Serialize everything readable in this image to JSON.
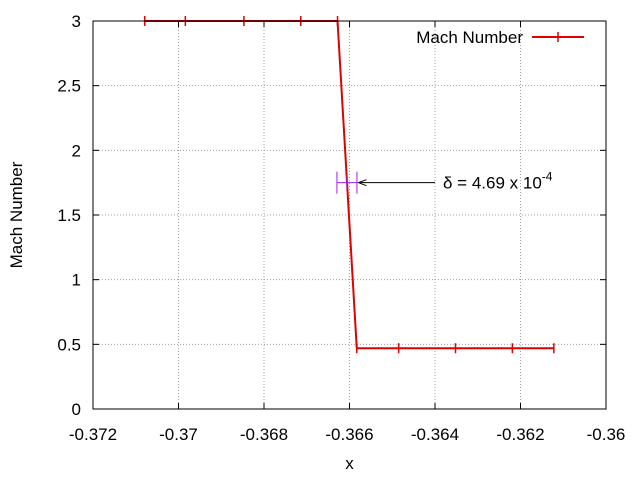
{
  "chart_data": {
    "type": "line",
    "title": "",
    "xlabel": "x",
    "ylabel": "Mach Number",
    "xlim": [
      -0.372,
      -0.36
    ],
    "ylim": [
      0,
      3
    ],
    "x_ticks": [
      -0.372,
      -0.37,
      -0.368,
      -0.366,
      -0.364,
      -0.362,
      -0.36
    ],
    "x_tick_labels": [
      "-0.372",
      "-0.37",
      "-0.368",
      "-0.366",
      "-0.364",
      "-0.362",
      "-0.36"
    ],
    "y_ticks": [
      0,
      0.5,
      1,
      1.5,
      2,
      2.5,
      3
    ],
    "y_tick_labels": [
      "0",
      "0.5",
      "1",
      "1.5",
      "2",
      "2.5",
      "3"
    ],
    "grid": true,
    "legend": {
      "position": "top-right"
    },
    "series": [
      {
        "name": "Mach Number",
        "color": "#e00000",
        "x": [
          -0.37079,
          -0.36984,
          -0.36847,
          -0.36714,
          -0.36628,
          -0.36583,
          -0.36485,
          -0.36352,
          -0.36219,
          -0.36122
        ],
        "y": [
          3.0,
          3.0,
          3.0,
          3.0,
          3.0,
          0.47,
          0.47,
          0.47,
          0.47,
          0.47
        ]
      }
    ],
    "annotations": [
      {
        "type": "error-bar",
        "color": "#a020f0",
        "x_center": -0.36606,
        "x_halfwidth": 0.000234,
        "y": 1.75
      },
      {
        "type": "arrow",
        "from_x": -0.364,
        "to_x": -0.36579,
        "y": 1.75,
        "text_prefix": "δ = 4.69 x 10",
        "text_superscript": "-4"
      }
    ]
  }
}
